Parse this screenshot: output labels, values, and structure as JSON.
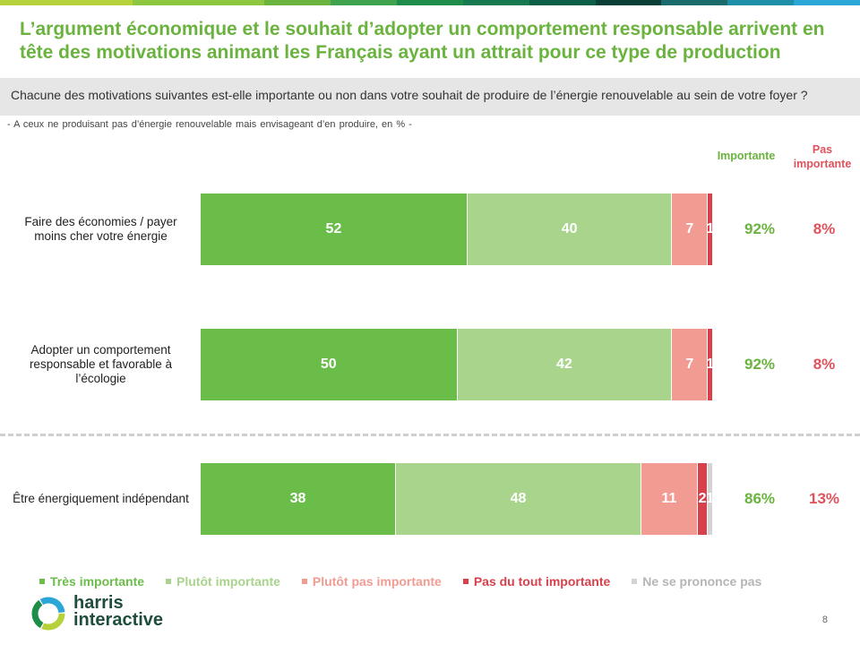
{
  "colors": {
    "stripe": [
      "#b6d23a",
      "#b6d23a",
      "#8dc63f",
      "#8dc63f",
      "#6ab33e",
      "#3fa34d",
      "#1e8d4a",
      "#157a4f",
      "#0c5e46",
      "#0a3f36",
      "#1a6b6b",
      "#1d8fa8",
      "#2aa7d6"
    ],
    "title": "#6ab33e",
    "very_important": "#6bbd4a",
    "rather_important": "#a8d48c",
    "rather_not_important": "#f29b93",
    "not_at_all_important": "#d8404b",
    "no_opinion": "#d3d3d3"
  },
  "title": "L’argument économique et le souhait d’adopter un comportement responsable arrivent en tête des motivations animant les Français ayant un attrait pour ce type de production",
  "question": "Chacune des motivations suivantes est-elle importante ou non dans votre souhait de produire de l’énergie renouvelable au sein de votre foyer ?",
  "base": "- A ceux ne produisant pas d’énergie renouvelable  mais envisageant  d’en produire,  en % -",
  "headers": {
    "importante": "Importante",
    "pas_importante": "Pas importante"
  },
  "chart_data": {
    "type": "bar",
    "orientation": "horizontal-stacked",
    "unit": "%",
    "categories": [
      "Faire des économies / payer moins cher votre énergie",
      "Adopter un comportement responsable et favorable à l’écologie",
      "Être énergiquement indépendant"
    ],
    "series": [
      {
        "name": "Très importante",
        "color": "#6bbd4a",
        "values": [
          52,
          50,
          38
        ]
      },
      {
        "name": "Plutôt importante",
        "color": "#a8d48c",
        "values": [
          40,
          42,
          48
        ]
      },
      {
        "name": "Plutôt pas importante",
        "color": "#f29b93",
        "values": [
          7,
          7,
          11
        ]
      },
      {
        "name": "Pas du tout importante",
        "color": "#d8404b",
        "values": [
          1,
          1,
          2
        ]
      },
      {
        "name": "Ne se prononce pas",
        "color": "#d3d3d3",
        "values": [
          0,
          0,
          1
        ]
      }
    ],
    "totals": {
      "importante": [
        "92%",
        "92%",
        "86%"
      ],
      "pas_importante": [
        "8%",
        "8%",
        "13%"
      ]
    },
    "xlim": [
      0,
      100
    ],
    "legend_position": "bottom"
  },
  "legend": [
    "Très importante",
    "Plutôt importante",
    "Plutôt pas importante",
    "Pas du tout importante",
    "Ne se prononce pas"
  ],
  "brand": {
    "line1": "harris",
    "line2": "interactive"
  },
  "page_number": "8"
}
